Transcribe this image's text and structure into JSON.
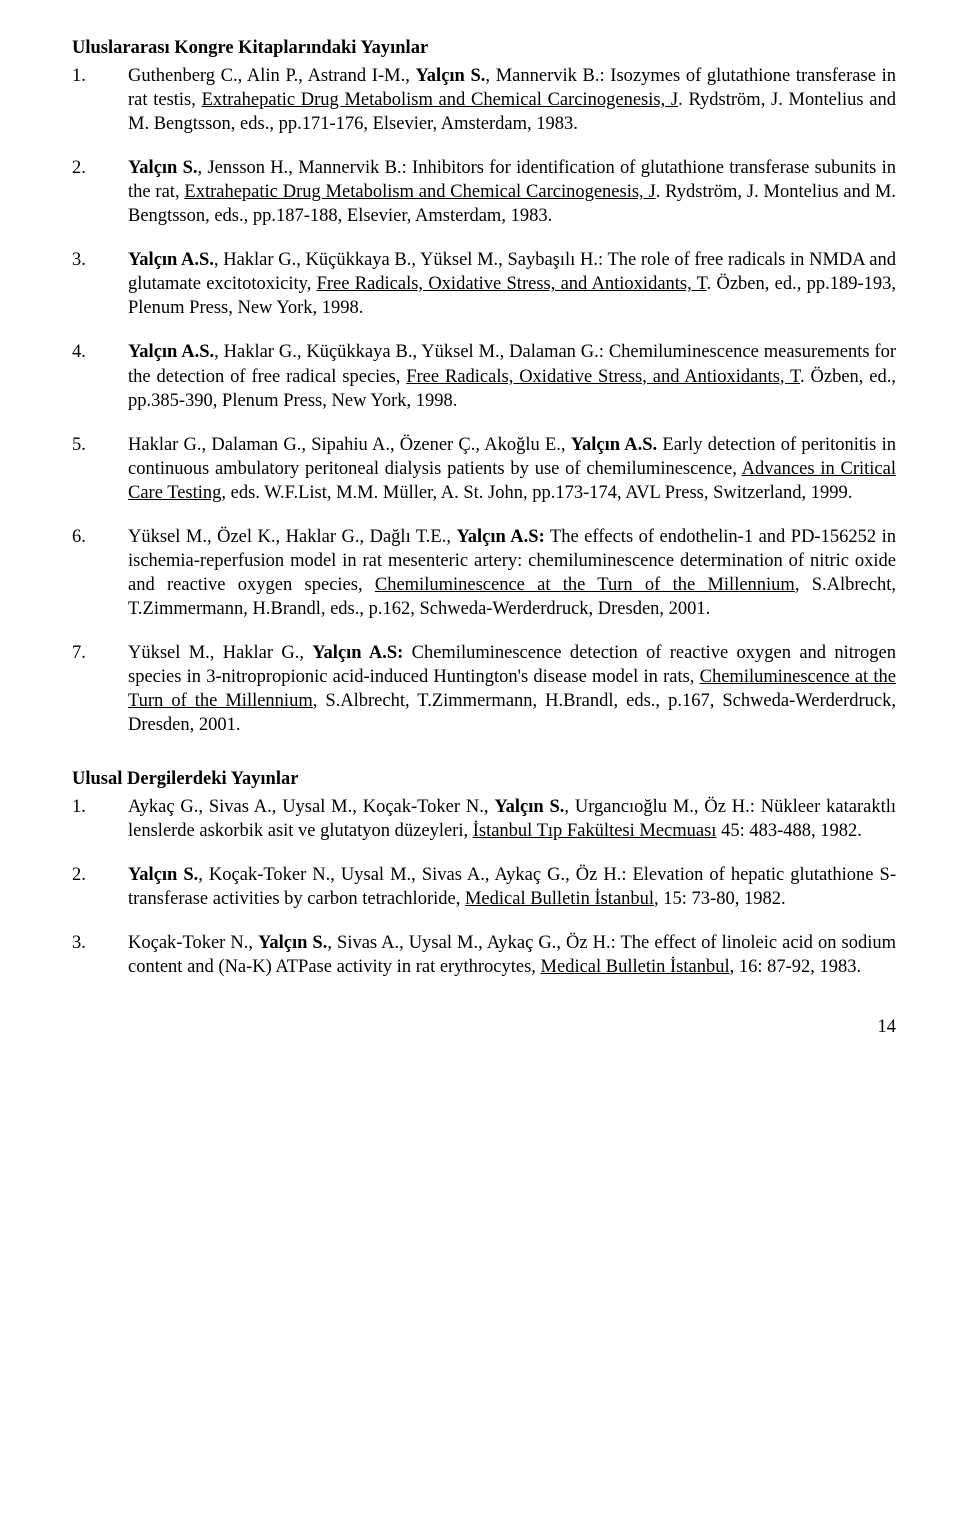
{
  "section1_heading": "Uluslararası Kongre Kitaplarındaki Yayınlar",
  "section2_heading": "Ulusal Dergilerdeki Yayınlar",
  "page_number": "14",
  "s1e1": {
    "num": "1.",
    "p1": "Guthenberg C., Alin P., Astrand I-M., ",
    "bold1": "Yalçın S.",
    "p2": ", Mannervik B.: Isozymes of glutathione transferase in rat testis, ",
    "u1": "Extrahepatic Drug Metabolism and Chemical Carcinogenesis, J",
    "p3": ". Rydström, J. Montelius and M. Bengtsson, eds., pp.171-176, Elsevier, Amsterdam, 1983."
  },
  "s1e2": {
    "num": "2.",
    "bold1": "Yalçın S.",
    "p1": ", Jensson H., Mannervik B.: Inhibitors for identification of glutathione transferase subunits in the rat, ",
    "u1": "Extrahepatic Drug Metabolism and Chemical Carcinogenesis, J",
    "p2": ". Rydström, J. Montelius and M. Bengtsson, eds., pp.187-188, Elsevier, Amsterdam, 1983."
  },
  "s1e3": {
    "num": "3.",
    "bold1": "Yalçın A.S.",
    "p1": ", Haklar G., Küçükkaya B., Yüksel M., Saybaşılı H.: The role of free radicals in NMDA and glutamate excitotoxicity, ",
    "u1": "Free Radicals, Oxidative Stress, and Antioxidants, T",
    "p2": ". Özben, ed., pp.189-193, Plenum Press, New York, 1998."
  },
  "s1e4": {
    "num": "4.",
    "bold1": "Yalçın A.S.",
    "p1": ", Haklar G., Küçükkaya B., Yüksel M., Dalaman G.: Chemiluminescence measurements for the detection of free radical species, ",
    "u1": "Free Radicals, Oxidative Stress, and Antioxidants, T",
    "p2": ". Özben, ed., pp.385-390, Plenum Press, New York, 1998."
  },
  "s1e5": {
    "num": "5.",
    "p1": "Haklar G., Dalaman G., Sipahiu A., Özener Ç., Akoğlu E., ",
    "bold1": "Yalçın A.S.",
    "p2": " Early detection of peritonitis in continuous ambulatory peritoneal dialysis patients by use of chemiluminescence, ",
    "u1": "Advances in Critical Care Testing",
    "p3": ", eds. W.F.List, M.M. Müller, A. St. John, pp.173-174, AVL Press, Switzerland, 1999."
  },
  "s1e6": {
    "num": "6.",
    "p1": "Yüksel M., Özel K., Haklar G., Dağlı T.E., ",
    "bold1": "Yalçın A.S:",
    "p2": " The effects of endothelin-1 and PD-156252 in ischemia-reperfusion model in rat mesenteric artery: chemiluminescence determination of nitric oxide and reactive oxygen species, ",
    "u1": "Chemiluminescence at the Turn of the Millennium",
    "p3": ", S.Albrecht, T.Zimmermann, H.Brandl, eds., p.162, Schweda-Werderdruck, Dresden, 2001."
  },
  "s1e7": {
    "num": "7.",
    "p1": "Yüksel M., Haklar G., ",
    "bold1": "Yalçın A.S:",
    "p2": " Chemiluminescence detection of reactive oxygen and nitrogen species in 3-nitropropionic acid-induced Huntington's disease model in rats, ",
    "u1": "Chemiluminescence at the Turn of the Millennium",
    "p3": ", S.Albrecht, T.Zimmermann, H.Brandl, eds., p.167, Schweda-Werderdruck, Dresden, 2001."
  },
  "s2e1": {
    "num": "1.",
    "p1": "Aykaç G., Sivas A., Uysal M., Koçak-Toker N., ",
    "bold1": "Yalçın S.",
    "p2": ", Urgancıoğlu M., Öz H.: Nükleer kataraktlı lenslerde askorbik asit ve glutatyon düzeyleri, ",
    "u1": "İstanbul Tıp Fakültesi Mecmuası",
    "p3": " 45: 483-488, 1982."
  },
  "s2e2": {
    "num": "2.",
    "bold1": "Yalçın S.",
    "p1": ", Koçak-Toker N., Uysal M., Sivas A., Aykaç G., Öz H.: Elevation of hepatic glutathione S-transferase activities by carbon tetrachloride, ",
    "u1": "Medical Bulletin İstanbul",
    "p2": ", 15: 73-80, 1982."
  },
  "s2e3": {
    "num": "3.",
    "p1": "Koçak-Toker N., ",
    "bold1": "Yalçın S.",
    "p2": ", Sivas A., Uysal M., Aykaç G., Öz H.: The effect of linoleic acid on sodium content and (Na-K) ATPase activity in rat erythrocytes, ",
    "u1": "Medical Bulletin İstanbul",
    "p3": ", 16: 87-92, 1983."
  }
}
